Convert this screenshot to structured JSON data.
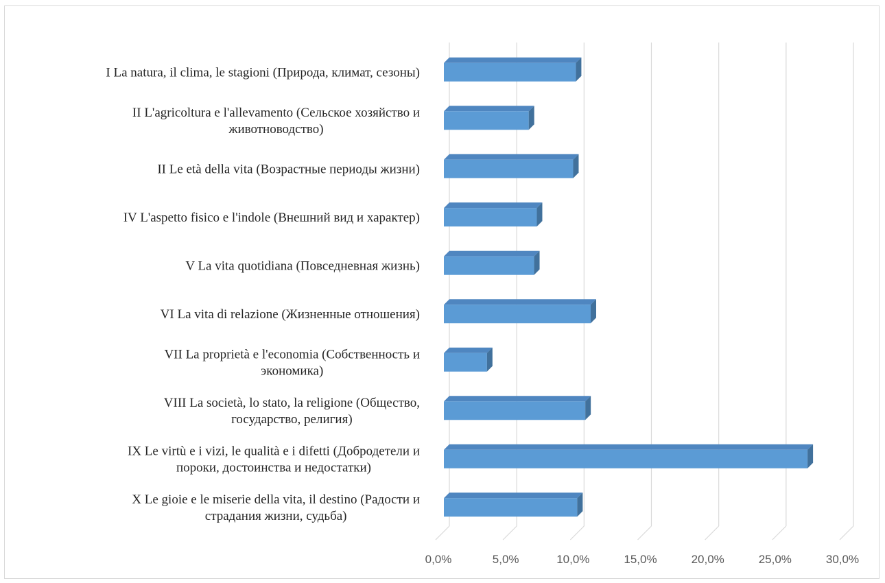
{
  "chart_data": {
    "type": "bar",
    "orientation": "horizontal",
    "categories": [
      [
        "I La natura, il clima,  le stagioni (Природа, климат, сезоны)"
      ],
      [
        "II L'agricoltura  e l'allevamento  (Сельское хозяйство и",
        "животноводство)"
      ],
      [
        "II Le età della vita (Возрастные периоды жизни)"
      ],
      [
        "IV L'aspetto fisico e l'indole  (Внешний вид и характер)"
      ],
      [
        "V La vita quotidiana (Повседневная жизнь)"
      ],
      [
        "VI La vita di relazione  (Жизненные отношения)"
      ],
      [
        "VII La proprietà e l'economia (Собственность и",
        "экономика)"
      ],
      [
        "VIII La società, lo stato, la religione  (Общество,",
        "государство, религия)"
      ],
      [
        "IX Le virtù  e i vizi,  le  qualità  e i difetti (Добродетели и",
        "пороки, достоинства и недостатки)"
      ],
      [
        "X Le gioie  e le miserie  della vita,  il destino (Радости и",
        "страдания жизни, судьба)"
      ]
    ],
    "values": [
      9.8,
      6.3,
      9.6,
      6.9,
      6.7,
      10.9,
      3.2,
      10.5,
      27.0,
      9.9
    ],
    "xlim": [
      0,
      30
    ],
    "x_ticks": [
      "0,0%",
      "5,0%",
      "10,0%",
      "15,0%",
      "20,0%",
      "25,0%",
      "30,0%"
    ],
    "bar_color": "#5b9bd5",
    "bar_edge_color": "#41719c",
    "grid": true,
    "legend": "none",
    "title": "",
    "xlabel": "",
    "ylabel": ""
  }
}
